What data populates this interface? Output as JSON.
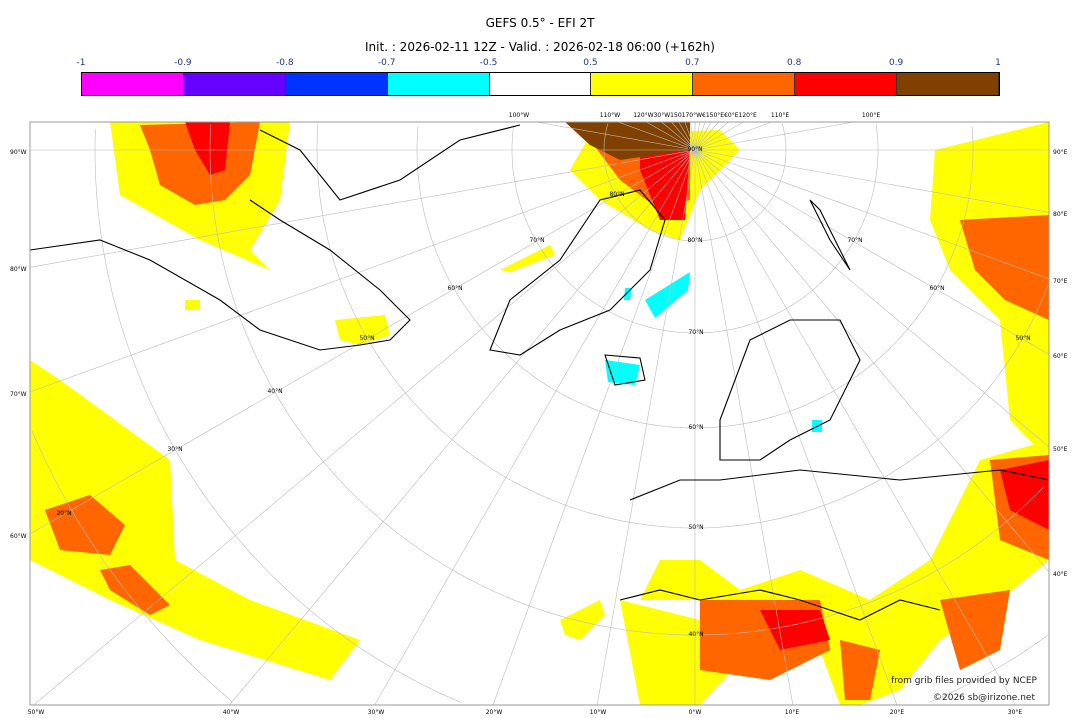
{
  "title": "GEFS 0.5° - EFI 2T",
  "subtitle": "Init. : 2026-02-11 12Z - Valid. : 2026-02-18 06:00 (+162h)",
  "colorbar": {
    "ticks": [
      "-1",
      "-0.9",
      "-0.8",
      "-0.7",
      "-0.5",
      "0.5",
      "0.7",
      "0.8",
      "0.9",
      "1"
    ],
    "colors": [
      "#ff00ff",
      "#6600ff",
      "#0033ff",
      "#00ffff",
      "#ffffff",
      "#ffff00",
      "#ff6600",
      "#ff0000",
      "#804000"
    ]
  },
  "map": {
    "left_labels": [
      "90°W",
      "80°W",
      "70°W",
      "60°W"
    ],
    "bottom_labels": [
      "50°W",
      "40°W",
      "30°W",
      "20°W",
      "10°W",
      "0°W",
      "10°E",
      "20°E",
      "30°E"
    ],
    "right_labels": [
      "90°E",
      "80°E",
      "70°E",
      "60°E",
      "50°E",
      "40°E"
    ],
    "top_labels": [
      "100°W",
      "110°W",
      "120°W30°W150170°W€150°E€0°E120°E",
      "110°E",
      "100°E"
    ],
    "lat_labels": [
      "90°N",
      "80°N",
      "80°N",
      "70°N",
      "70°N",
      "70°N",
      "60°N",
      "60°N",
      "60°N",
      "50°N",
      "50°N",
      "50°N",
      "40°N",
      "40°N",
      "30°N",
      "20°N"
    ]
  },
  "credits": {
    "line1": "from grib files provided by NCEP",
    "line2": "©2026 sb@irizone.net"
  }
}
